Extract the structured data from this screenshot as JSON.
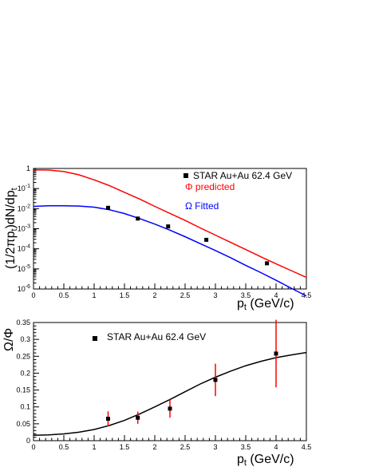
{
  "chart_data": [
    {
      "type": "scatter",
      "ylabel": "(1/2πpt)dN/dpt",
      "xlabel": "pt (GeV/c)",
      "xlim": [
        0,
        4.5
      ],
      "ylim_log10": [
        -6,
        0
      ],
      "x_ticks": [
        "0",
        "0.5",
        "1",
        "1.5",
        "2",
        "2.5",
        "3",
        "3.5",
        "4",
        "4.5"
      ],
      "y_ticks": [
        "1",
        "10-1",
        "10-2",
        "10-3",
        "10-4",
        "10-5",
        "10-6"
      ],
      "legend": [
        {
          "label": "STAR Au+Au 62.4 GeV",
          "color": "#000000"
        },
        {
          "label": "Φ predicted",
          "color": "#ff0000"
        },
        {
          "label": "Ω Fitted",
          "color": "#0000ff"
        }
      ],
      "series": [
        {
          "name": "STAR Au+Au 62.4 GeV",
          "kind": "points",
          "color": "#000000",
          "x": [
            1.23,
            1.72,
            2.22,
            2.85,
            3.85
          ],
          "y": [
            0.011,
            0.0032,
            0.0013,
            0.00028,
            1.9e-05
          ]
        },
        {
          "name": "Φ predicted",
          "kind": "line",
          "color": "#ff0000",
          "x": [
            0,
            0.25,
            0.5,
            0.75,
            1,
            1.25,
            1.5,
            1.75,
            2,
            2.25,
            2.5,
            2.75,
            3,
            3.25,
            3.5,
            3.75,
            4,
            4.25,
            4.5
          ],
          "y": [
            0.85,
            0.83,
            0.7,
            0.48,
            0.27,
            0.14,
            0.065,
            0.03,
            0.013,
            0.0058,
            0.0026,
            0.0011,
            0.00048,
            0.00021,
            9.15e-05,
            4e-05,
            1.8e-05,
            8.2e-06,
            3.8e-06
          ]
        },
        {
          "name": "Ω Fitted",
          "kind": "line",
          "color": "#0000ff",
          "x": [
            0,
            0.25,
            0.5,
            0.75,
            1,
            1.25,
            1.5,
            1.75,
            2,
            2.25,
            2.5,
            2.75,
            3,
            3.25,
            3.5,
            3.75,
            4,
            4.25,
            4.5
          ],
          "y": [
            0.013,
            0.0138,
            0.014,
            0.0135,
            0.0118,
            0.0088,
            0.0057,
            0.0032,
            0.0017,
            0.00085,
            0.0004,
            0.00018,
            8.2e-05,
            3.6e-05,
            1.5e-05,
            6.5e-06,
            2.7e-06,
            1.1e-06,
            4.5e-07
          ]
        }
      ]
    },
    {
      "type": "scatter",
      "ylabel": "Ω/Φ",
      "xlabel": "pt (GeV/c)",
      "xlim": [
        0,
        4.5
      ],
      "ylim": [
        0,
        0.35
      ],
      "x_ticks": [
        "0",
        "0.5",
        "1",
        "1.5",
        "2",
        "2.5",
        "3",
        "3.5",
        "4",
        "4.5"
      ],
      "y_ticks": [
        "0",
        "0.05",
        "0.1",
        "0.15",
        "0.2",
        "0.25",
        "0.3",
        "0.35"
      ],
      "legend": [
        {
          "label": "STAR Au+Au 62.4 GeV",
          "color": "#000000"
        }
      ],
      "series": [
        {
          "name": "STAR Au+Au 62.4 GeV",
          "kind": "points",
          "color": "#000000",
          "error_color": "#ff0000",
          "x": [
            1.23,
            1.72,
            2.25,
            3.0,
            4.0
          ],
          "y": [
            0.065,
            0.068,
            0.095,
            0.18,
            0.258
          ],
          "yerr": [
            0.022,
            0.018,
            0.027,
            0.048,
            0.1
          ]
        },
        {
          "kind": "line",
          "color": "#000000",
          "x": [
            0,
            0.25,
            0.5,
            0.75,
            1,
            1.25,
            1.5,
            1.75,
            2,
            2.25,
            2.5,
            2.75,
            3,
            3.25,
            3.5,
            3.75,
            4,
            4.25,
            4.5
          ],
          "y": [
            0.016,
            0.017,
            0.02,
            0.025,
            0.033,
            0.045,
            0.06,
            0.079,
            0.1,
            0.122,
            0.145,
            0.168,
            0.188,
            0.206,
            0.222,
            0.235,
            0.246,
            0.254,
            0.261
          ]
        }
      ]
    }
  ],
  "panel1": {
    "ylabel_main": "(1/2πp",
    "ylabel_sub1": "t",
    "ylabel_mid": ")dN/dp",
    "ylabel_sub2": "t",
    "xlabel_main": "p",
    "xlabel_sub": "t",
    "xlabel_unit": " (GeV/c)",
    "legend_data": "STAR Au+Au 62.4 GeV",
    "legend_phi": "Φ predicted",
    "legend_omega": "Ω Fitted"
  },
  "panel2": {
    "ylabel": "Ω/Φ",
    "xlabel_main": "p",
    "xlabel_sub": "t",
    "xlabel_unit": " (GeV/c)",
    "legend_data": "STAR Au+Au 62.4 GeV"
  }
}
